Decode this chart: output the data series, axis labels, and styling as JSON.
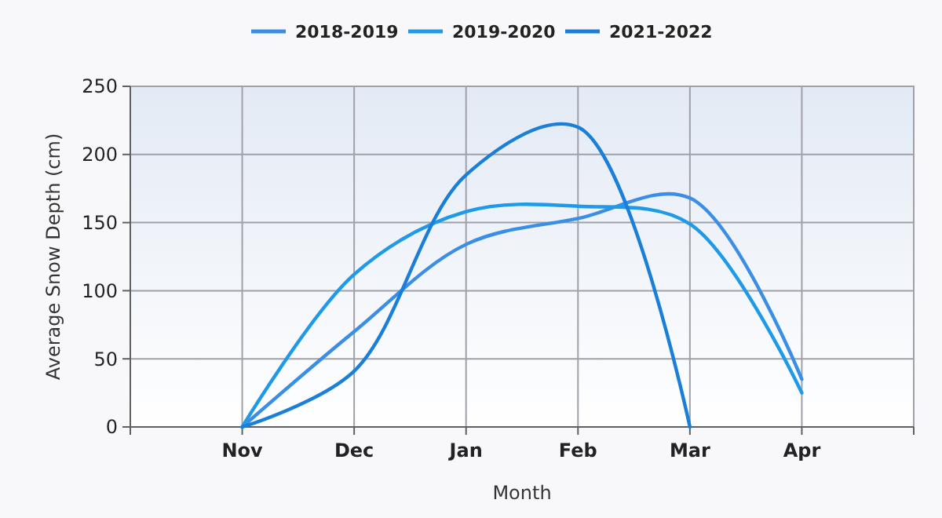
{
  "chart_data": {
    "type": "line",
    "xlabel": "Month",
    "ylabel": "Average Snow Depth (cm)",
    "categories": [
      "Nov",
      "Dec",
      "Jan",
      "Feb",
      "Mar",
      "Apr"
    ],
    "series": [
      {
        "name": "2018-2019",
        "color": "#3a8ee6",
        "values": [
          0,
          70,
          134,
          153,
          168,
          35
        ]
      },
      {
        "name": "2019-2020",
        "color": "#1e9ae8",
        "values": [
          0,
          112,
          158,
          162,
          149,
          25
        ]
      },
      {
        "name": "2021-2022",
        "color": "#1a7fd8",
        "values": [
          0,
          41,
          185,
          220,
          0,
          null
        ]
      }
    ],
    "ylim": [
      0,
      250
    ],
    "yticks": [
      0,
      50,
      100,
      150,
      200,
      250
    ],
    "grid": true,
    "legend": "top",
    "marker": "none",
    "line_style": "solid"
  }
}
